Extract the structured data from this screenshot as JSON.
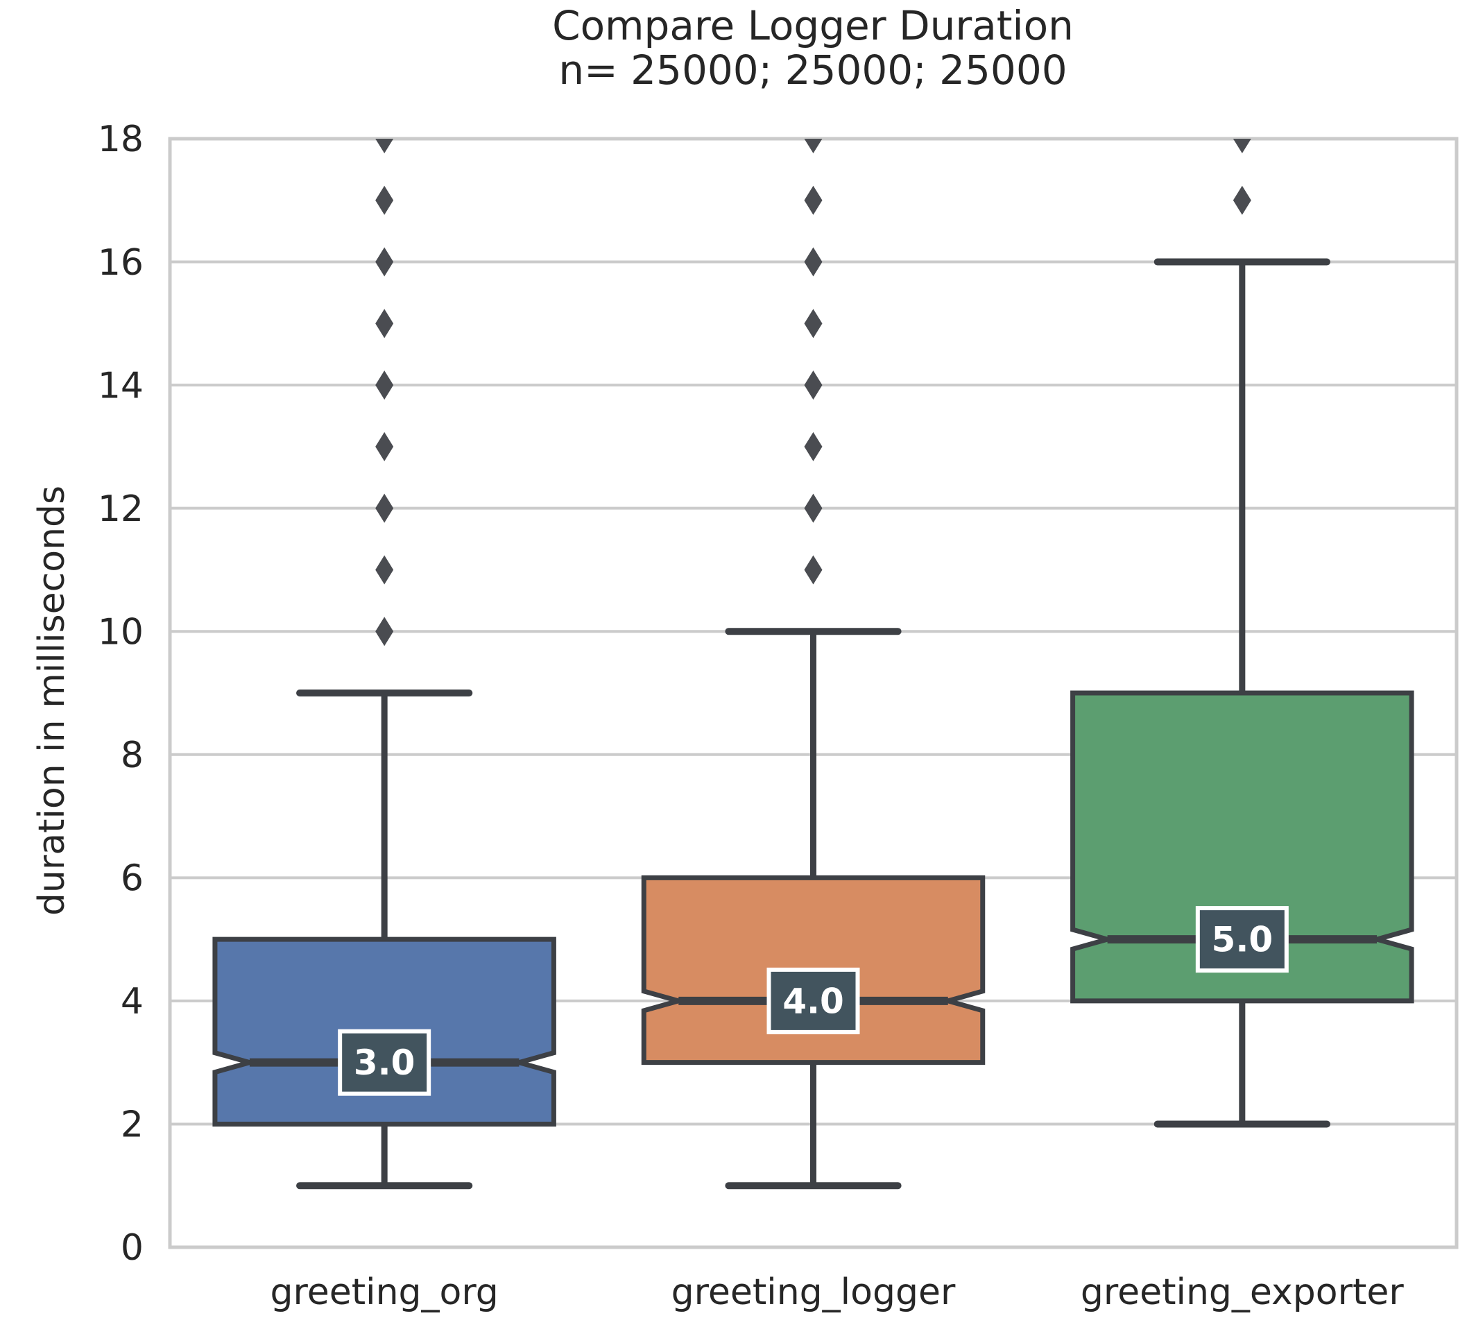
{
  "figure": {
    "title_line1": "Compare Logger Duration",
    "title_line2": "n= 25000; 25000; 25000"
  },
  "y_axis": {
    "label": "duration in milliseconds",
    "tick_values": [
      0,
      2,
      4,
      6,
      8,
      10,
      12,
      14,
      16,
      18
    ],
    "min": 0,
    "max": 18
  },
  "x_axis": {
    "categories": [
      "greeting_org",
      "greeting_logger",
      "greeting_exporter"
    ]
  },
  "colors": {
    "background": "#ffffff",
    "box_fills": [
      "#5777ab",
      "#d78c62",
      "#5c9e70"
    ],
    "box_edge": "#3d4045",
    "whisker": "#3d4045",
    "median_line": "#3d4045",
    "outlier": "#4a4c51",
    "grid": "#cbcbcb",
    "spine": "#cbcbcb",
    "text": "#262626",
    "median_label_bg": "#42545e",
    "median_label_border": "#ffffff",
    "median_label_text": "#ffffff"
  },
  "chart_data": {
    "type": "boxplot",
    "title": "Compare Logger Duration",
    "subtitle": "n= 25000; 25000; 25000",
    "xlabel": "",
    "ylabel": "duration in milliseconds",
    "ylim": [
      0,
      18
    ],
    "grid": "horizontal-every-2",
    "legend": "none",
    "notched": true,
    "categories": [
      "greeting_org",
      "greeting_logger",
      "greeting_exporter"
    ],
    "sample_sizes": [
      25000,
      25000,
      25000
    ],
    "series": [
      {
        "name": "greeting_org",
        "whisker_low": 1,
        "q1": 2,
        "median": 3,
        "q3": 5,
        "whisker_high": 9,
        "outliers": [
          10,
          11,
          12,
          13,
          14,
          15,
          16,
          17,
          18
        ],
        "median_label": "3.0"
      },
      {
        "name": "greeting_logger",
        "whisker_low": 1,
        "q1": 3,
        "median": 4,
        "q3": 6,
        "whisker_high": 10,
        "outliers": [
          11,
          12,
          13,
          14,
          15,
          16,
          17,
          18
        ],
        "median_label": "4.0"
      },
      {
        "name": "greeting_exporter",
        "whisker_low": 2,
        "q1": 4,
        "median": 5,
        "q3": 9,
        "whisker_high": 16,
        "outliers": [
          17,
          18
        ],
        "median_label": "5.0"
      }
    ]
  }
}
